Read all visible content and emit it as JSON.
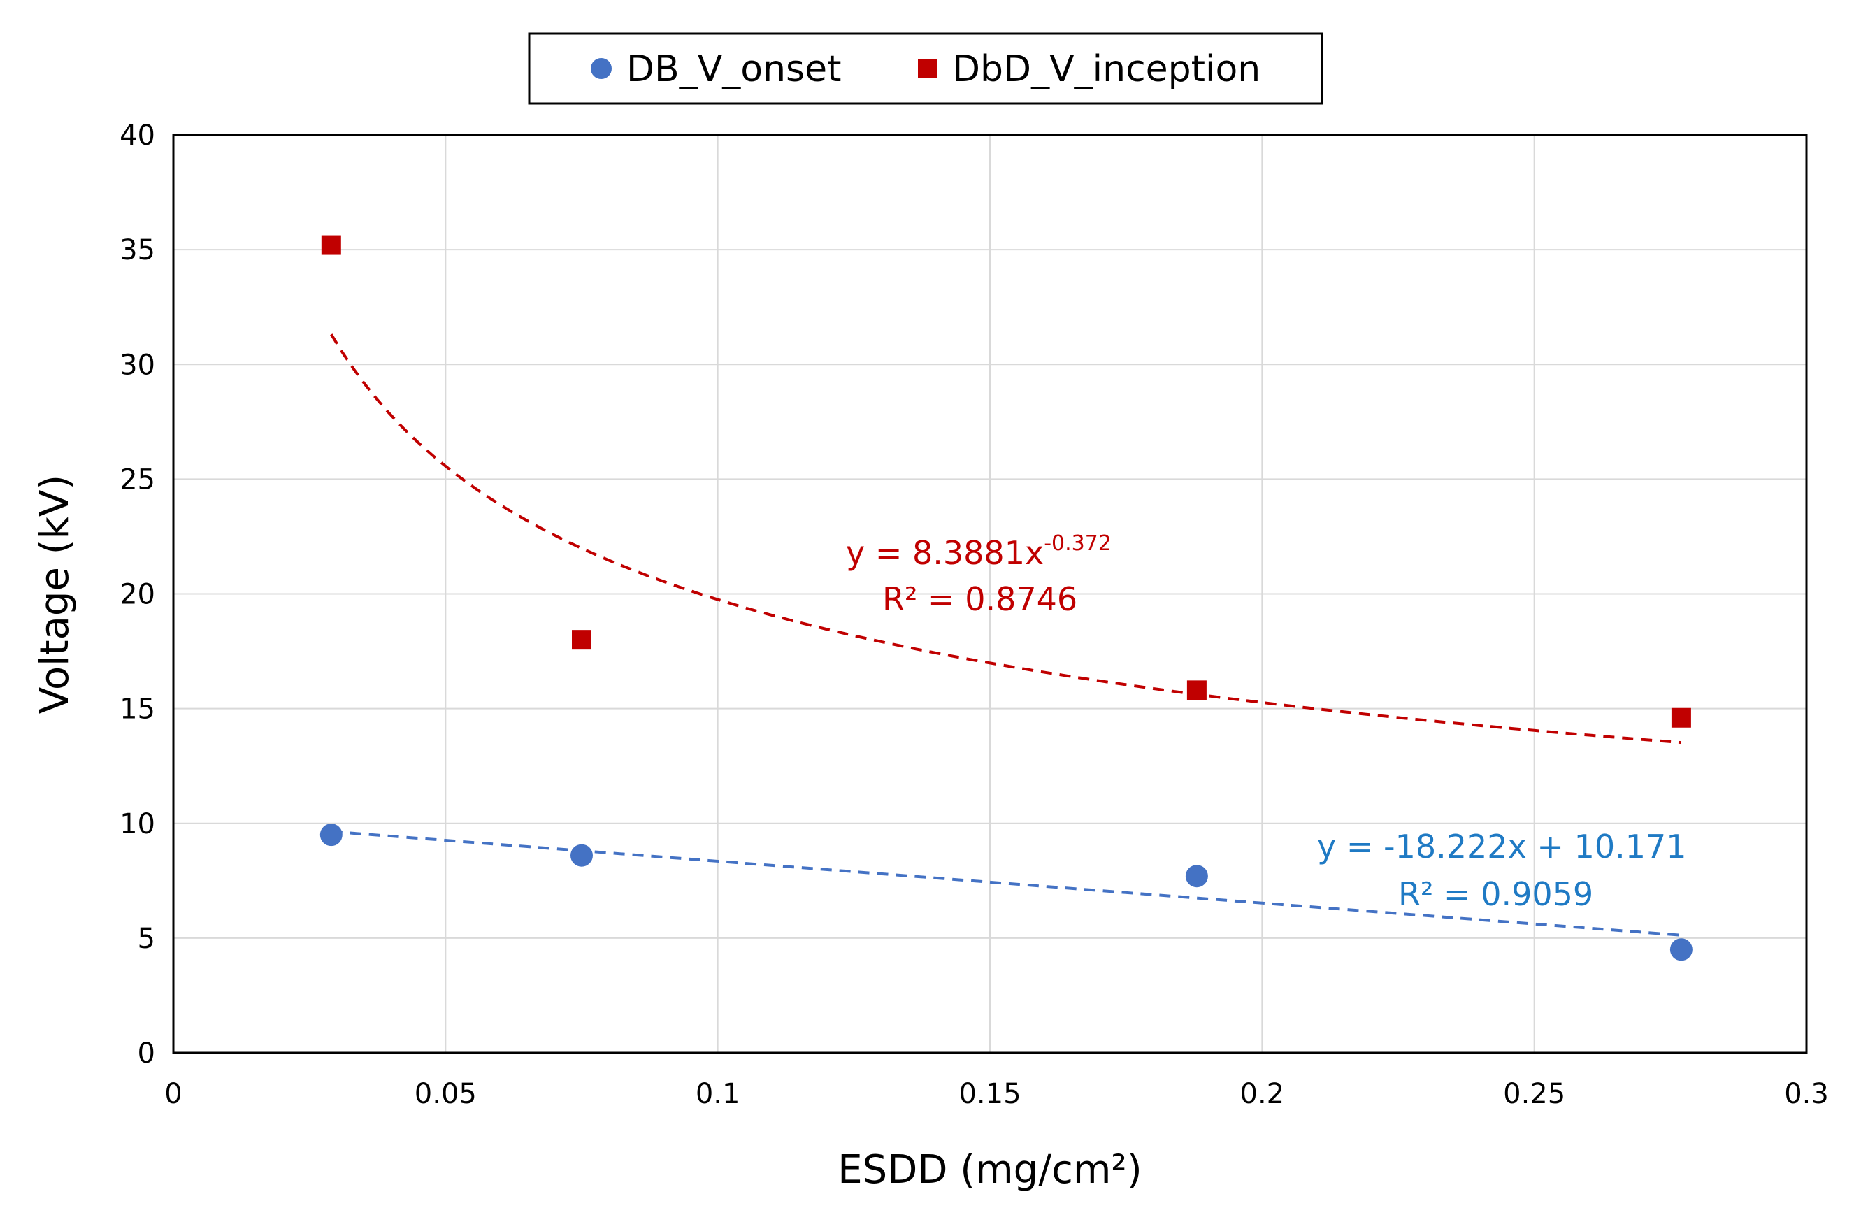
{
  "chart_data": {
    "type": "scatter",
    "xlabel": "ESDD (mg/cm²)",
    "ylabel": "Voltage (kV)",
    "xlim": [
      0,
      0.3
    ],
    "ylim": [
      0,
      40
    ],
    "x_ticks": [
      0,
      0.05,
      0.1,
      0.15,
      0.2,
      0.25,
      0.3
    ],
    "x_tick_labels": [
      "0",
      "0.05",
      "0.1",
      "0.15",
      "0.2",
      "0.25",
      "0.3"
    ],
    "y_ticks": [
      0,
      5,
      10,
      15,
      20,
      25,
      30,
      35,
      40
    ],
    "y_tick_labels": [
      "0",
      "5",
      "10",
      "15",
      "20",
      "25",
      "30",
      "35",
      "40"
    ],
    "grid": true,
    "legend_position": "top-center",
    "series": [
      {
        "name": "DB_V_onset",
        "marker": "circle",
        "color": "#4472C4",
        "x": [
          0.029,
          0.075,
          0.188,
          0.277
        ],
        "y": [
          9.5,
          8.6,
          7.7,
          4.5
        ],
        "trendline": {
          "kind": "linear",
          "slope": -18.222,
          "intercept": 10.171,
          "color": "#4472C4",
          "equation": "y = -18.222x + 10.171",
          "r_squared": "R² = 0.9059",
          "label_color": "#1F7AC4"
        }
      },
      {
        "name": "DbD_V_inception",
        "marker": "square",
        "color": "#C00000",
        "x": [
          0.029,
          0.075,
          0.188,
          0.277
        ],
        "y": [
          35.2,
          18.0,
          15.8,
          14.6
        ],
        "trendline": {
          "kind": "power",
          "coefficient": 8.3881,
          "exponent": -0.372,
          "color": "#C00000",
          "equation_base": "y = 8.3881x",
          "equation_exponent": "-0.372",
          "r_squared": "R² = 0.8746",
          "label_color": "#C00000"
        }
      }
    ]
  }
}
